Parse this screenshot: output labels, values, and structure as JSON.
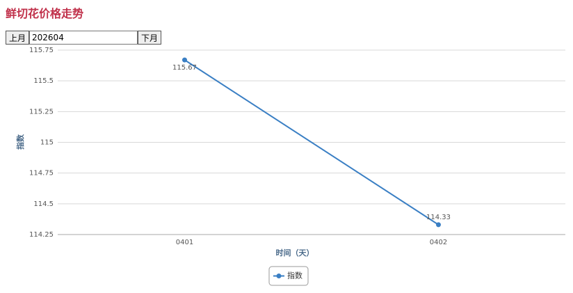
{
  "header": {
    "title": "鲜切花价格走势"
  },
  "controls": {
    "prev": "上月",
    "month": "202604",
    "next": "下月"
  },
  "chart_data": {
    "type": "line",
    "categories": [
      "0401",
      "0402"
    ],
    "series": [
      {
        "name": "指数",
        "color": "#3a7fc4",
        "values": [
          115.67,
          114.33
        ]
      }
    ],
    "xlabel": "时间（天）",
    "ylabel": "指数",
    "ylim": [
      114.25,
      115.75
    ],
    "yticks": [
      114.25,
      114.5,
      114.75,
      115,
      115.25,
      115.5,
      115.75
    ],
    "grid": true,
    "legend": "bottom"
  }
}
